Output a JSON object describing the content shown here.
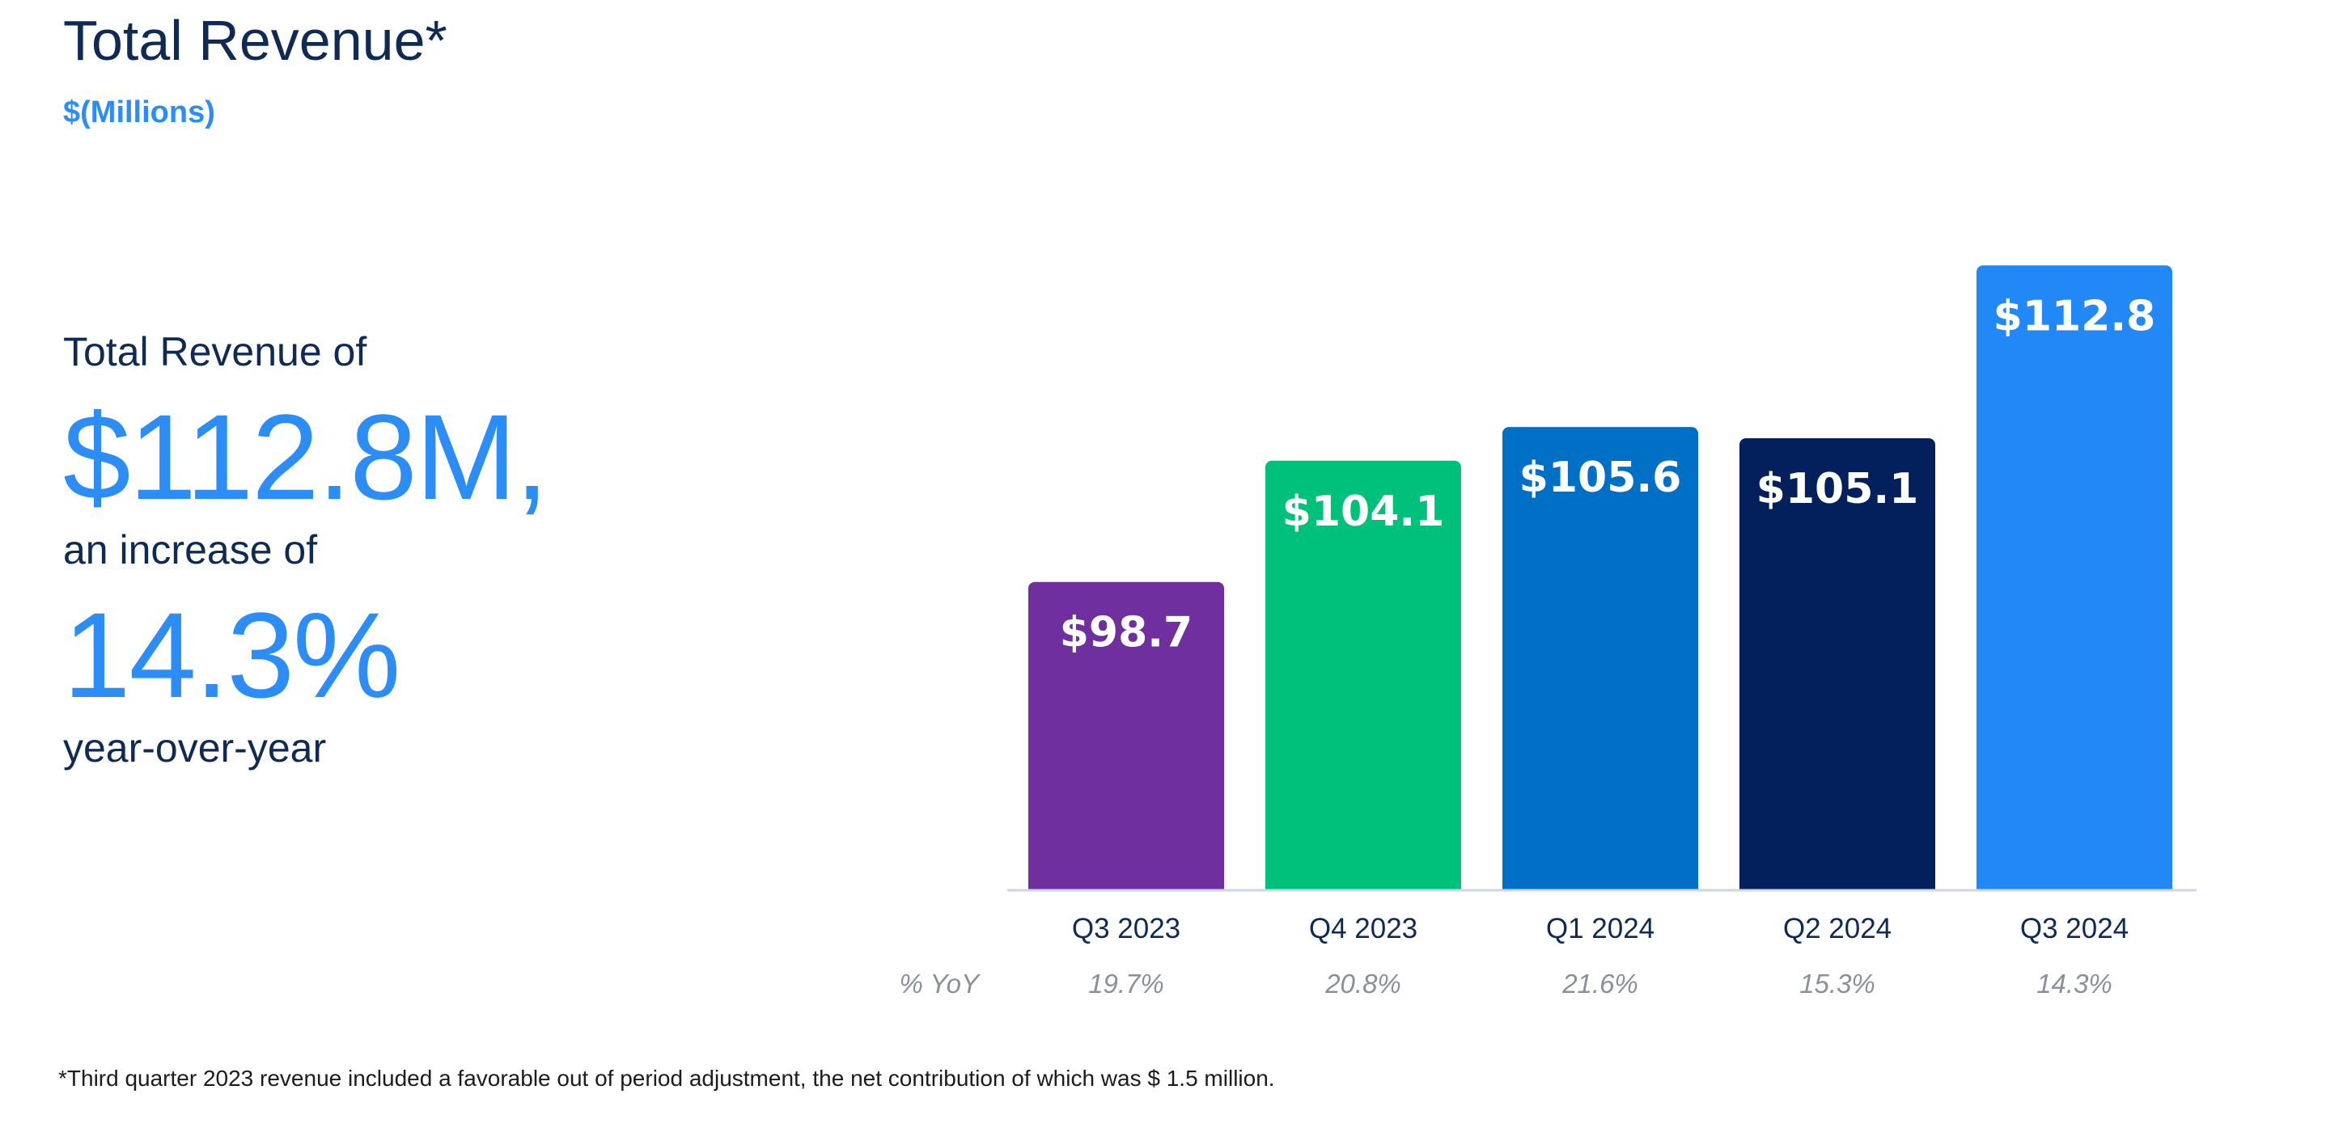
{
  "header": {
    "title": "Total Revenue*",
    "subtitle": "$(Millions)"
  },
  "summary": {
    "line1": "Total Revenue of",
    "value": "$112.8M,",
    "line2": "an increase of",
    "pct": "14.3%",
    "line3": "year-over-year"
  },
  "chart_data": {
    "type": "bar",
    "categories": [
      "Q3 2023",
      "Q4 2023",
      "Q1 2024",
      "Q2 2024",
      "Q3 2024"
    ],
    "values": [
      98.7,
      104.1,
      105.6,
      105.1,
      112.8
    ],
    "value_labels": [
      "$98.7",
      "$104.1",
      "$105.6",
      "$105.1",
      "$112.8"
    ],
    "colors": [
      "#6f2f9e",
      "#00c17c",
      "#0070c7",
      "#04205c",
      "#2188f5"
    ],
    "yoy_label": "% YoY",
    "yoy": [
      "19.7%",
      "20.8%",
      "21.6%",
      "15.3%",
      "14.3%"
    ],
    "ylim": [
      85,
      114
    ],
    "grid": false,
    "legend": "none"
  },
  "footnote": "*Third quarter 2023 revenue included a favorable out of period adjustment, the net contribution of which was $ 1.5 million."
}
